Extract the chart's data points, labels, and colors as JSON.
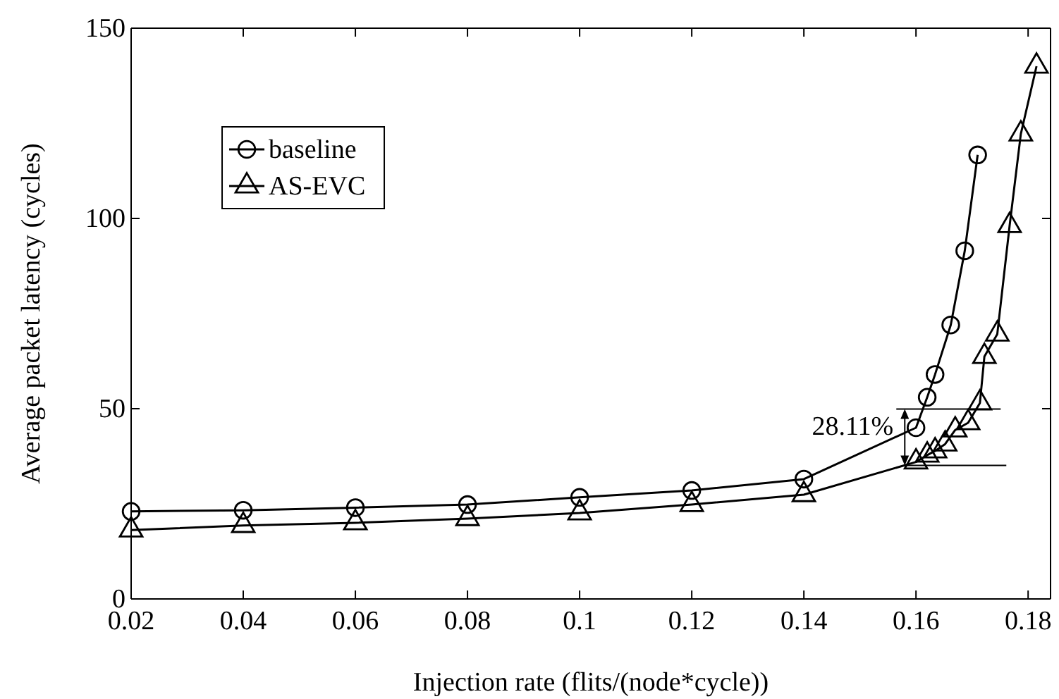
{
  "chart_data": {
    "type": "line",
    "xlabel": "Injection rate (flits/(node*cycle))",
    "ylabel": "Average packet latency (cycles)",
    "xlim": [
      0.02,
      0.184
    ],
    "xticks": [
      0.02,
      0.04,
      0.06,
      0.08,
      0.1,
      0.12,
      0.14,
      0.16,
      0.18
    ],
    "ylim": [
      0,
      150
    ],
    "yticks": [
      0,
      50,
      100,
      150
    ],
    "grid": false,
    "legend": "top left",
    "line_style": "solid",
    "series": [
      {
        "name": "baseline",
        "color": "#000000",
        "marker": "circle",
        "x": [
          0.02,
          0.04,
          0.06,
          0.08,
          0.1,
          0.12,
          0.14,
          0.16,
          0.162,
          0.1634,
          0.1662,
          0.1687,
          0.171
        ],
        "values": [
          23,
          23.3,
          24,
          24.8,
          26.7,
          28.5,
          31.5,
          45,
          53,
          59,
          72,
          91.5,
          116.7
        ]
      },
      {
        "name": "AS-EVC",
        "color": "#000000",
        "marker": "triangle",
        "x": [
          0.02,
          0.04,
          0.06,
          0.08,
          0.1,
          0.12,
          0.14,
          0.16,
          0.162,
          0.1634,
          0.1652,
          0.167,
          0.1693,
          0.1714,
          0.1722,
          0.1745,
          0.1767,
          0.1787,
          0.1815
        ],
        "values": [
          18.1,
          19.3,
          20,
          21.1,
          22.6,
          24.8,
          27.4,
          36,
          37.8,
          38.9,
          40.7,
          44.4,
          46.3,
          51.5,
          63.7,
          69.6,
          98.1,
          122.2,
          140
        ]
      }
    ],
    "annotations": [
      {
        "text": "28.11%",
        "x": 0.158,
        "y": 42.5
      }
    ]
  }
}
